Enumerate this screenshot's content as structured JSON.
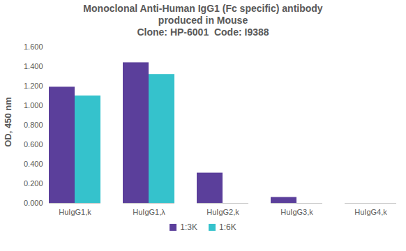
{
  "chart_data": {
    "type": "bar",
    "title": "Monoclonal Anti-Human IgG1 (Fc specific) antibody produced in Mouse",
    "subtitle": "Clone: HP-6001  Code: I9388",
    "y_label": "OD, 450 nm",
    "categories": [
      "HuIgG1,k",
      "HuIgG1,λ",
      "HuIgG2,k",
      "HuIgG3,k",
      "HuIgG4,k"
    ],
    "series": [
      {
        "name": "1:3K",
        "color": "#5b3f9b",
        "values": [
          1.19,
          1.44,
          0.31,
          0.06,
          0
        ]
      },
      {
        "name": "1:6K",
        "color": "#35c2cc",
        "values": [
          1.1,
          1.32,
          0,
          0,
          0
        ]
      }
    ],
    "ylim": [
      0,
      1.6
    ],
    "yticks": [
      {
        "value": 0,
        "label": "0.000"
      },
      {
        "value": 0.2,
        "label": "0.200"
      },
      {
        "value": 0.4,
        "label": "0.400"
      },
      {
        "value": 0.6,
        "label": "0.600"
      },
      {
        "value": 0.8,
        "label": "0.800"
      },
      {
        "value": 1.0,
        "label": "1.000"
      },
      {
        "value": 1.2,
        "label": "1.200"
      },
      {
        "value": 1.4,
        "label": "1.400"
      },
      {
        "value": 1.6,
        "label": "1.600"
      }
    ],
    "grid": false,
    "legend": "bottom"
  }
}
